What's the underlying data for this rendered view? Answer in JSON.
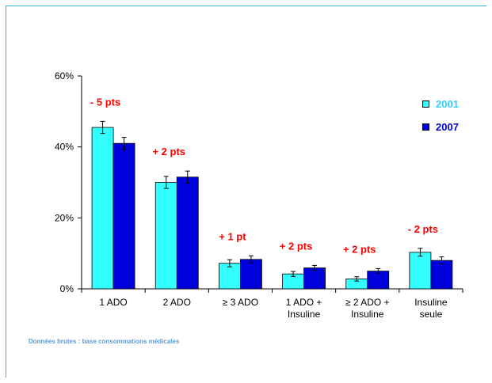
{
  "chart_data": {
    "type": "bar",
    "categories": [
      [
        "1 ADO"
      ],
      [
        "2 ADO"
      ],
      [
        "≥ 3 ADO"
      ],
      [
        "1 ADO +",
        "Insuline"
      ],
      [
        "≥ 2 ADO +",
        "Insuline"
      ],
      [
        "Insuline",
        "seule"
      ]
    ],
    "series": [
      {
        "name": "2001",
        "values": [
          45.5,
          30.0,
          7.2,
          4.2,
          2.8,
          10.3
        ],
        "errors": [
          1.7,
          1.7,
          1.0,
          0.7,
          0.6,
          1.1
        ],
        "color": "#33ffff",
        "label_color": "#33ccff"
      },
      {
        "name": "2007",
        "values": [
          41.0,
          31.5,
          8.3,
          5.9,
          5.0,
          8.0
        ],
        "errors": [
          1.7,
          1.7,
          1.0,
          0.7,
          0.7,
          1.0
        ],
        "color": "#0000dd",
        "label_color": "#0000cc"
      }
    ],
    "annotations": [
      "- 5 pts",
      "+ 2 pts",
      "+ 1 pt",
      "+ 2 pts",
      "+ 2 pts",
      "- 2 pts"
    ],
    "annotation_color": "#ff0000",
    "yticks": [
      "0%",
      "20%",
      "40%",
      "60%"
    ],
    "ylim": [
      0,
      60
    ],
    "grid": false,
    "legend_position": "top-right"
  },
  "source_note": "Données brutes : base consommations médicales"
}
